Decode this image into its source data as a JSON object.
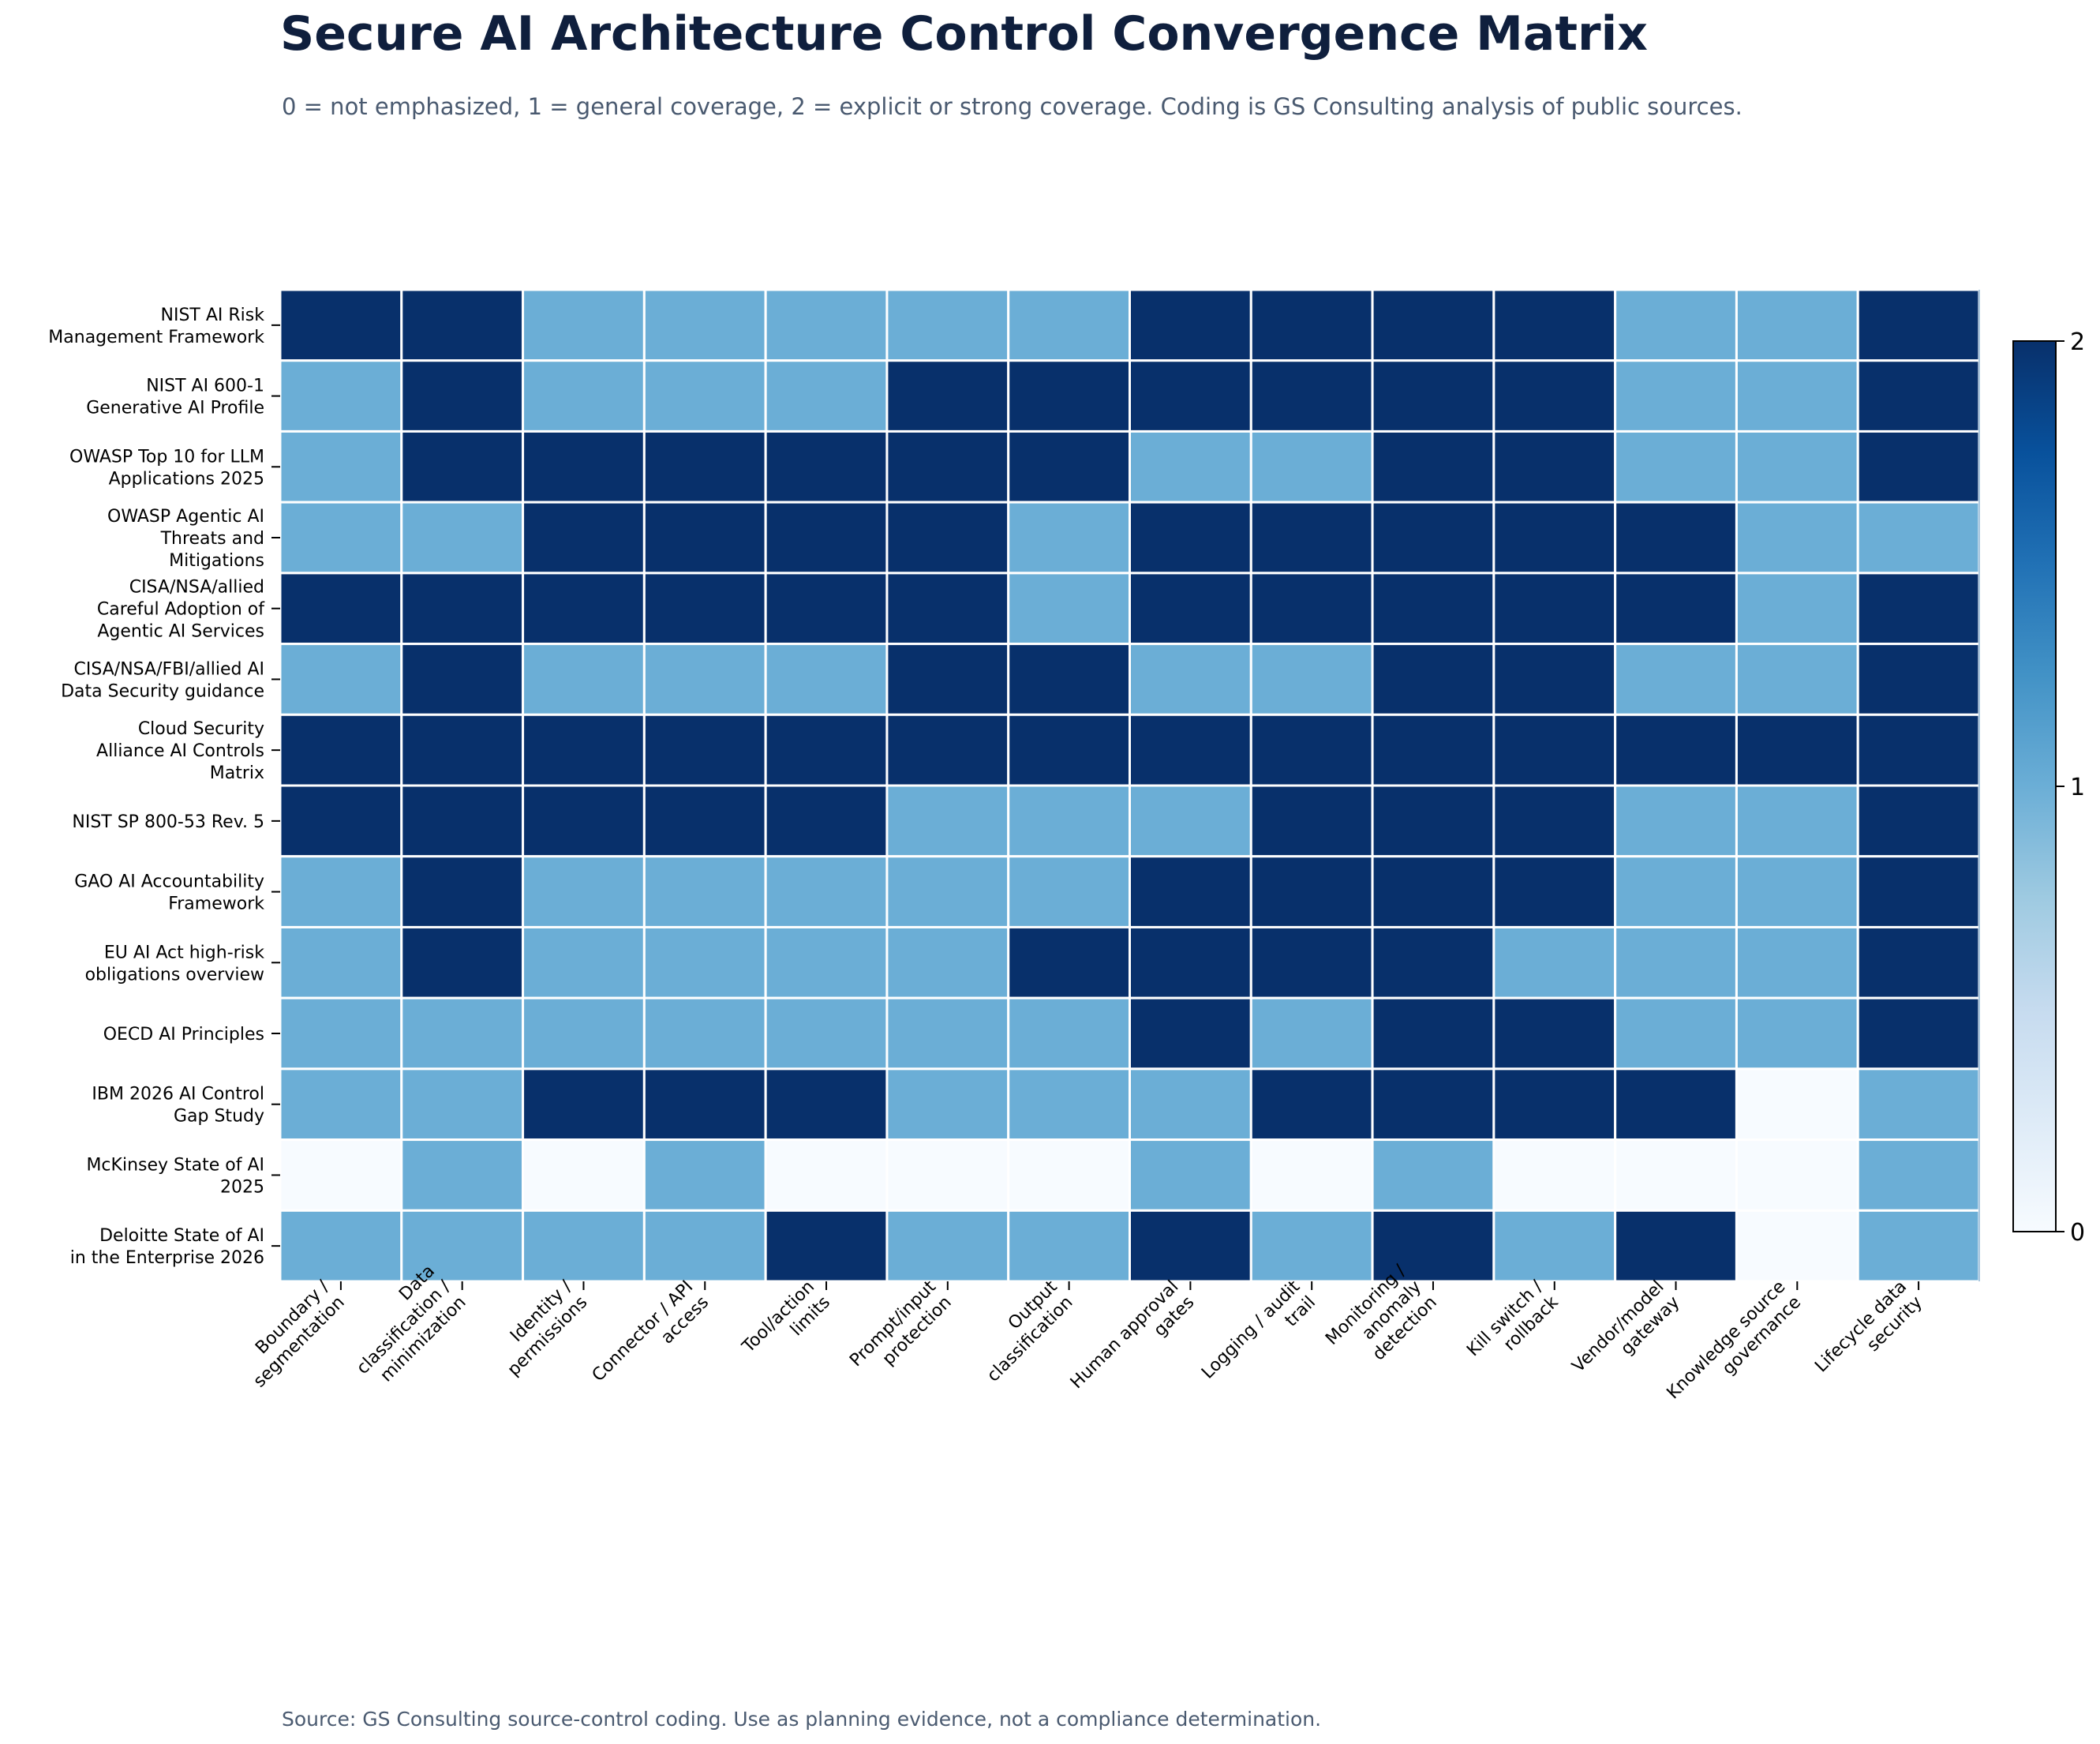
{
  "header": {
    "title": "Secure AI Architecture Control Convergence Matrix",
    "subtitle": "0 = not emphasized, 1 = general coverage, 2 = explicit or strong coverage. Coding is GS Consulting analysis of public sources."
  },
  "footer": {
    "source": "Source: GS Consulting source-control coding. Use as planning evidence, not a compliance determination."
  },
  "chart_data": {
    "type": "heatmap",
    "columns": [
      [
        "Boundary /",
        "segmentation"
      ],
      [
        "Data",
        "classification /",
        "minimization"
      ],
      [
        "Identity /",
        "permissions"
      ],
      [
        "Connector / API",
        "access"
      ],
      [
        "Tool/action",
        "limits"
      ],
      [
        "Prompt/input",
        "protection"
      ],
      [
        "Output",
        "classification"
      ],
      [
        "Human approval",
        "gates"
      ],
      [
        "Logging / audit",
        "trail"
      ],
      [
        "Monitoring /",
        "anomaly",
        "detection"
      ],
      [
        "Kill switch /",
        "rollback"
      ],
      [
        "Vendor/model",
        "gateway"
      ],
      [
        "Knowledge source",
        "governance"
      ],
      [
        "Lifecycle data",
        "security"
      ]
    ],
    "rows": [
      [
        "NIST AI Risk",
        "Management Framework"
      ],
      [
        "NIST AI 600-1",
        "Generative AI Profile"
      ],
      [
        "OWASP Top 10 for LLM",
        "Applications 2025"
      ],
      [
        "OWASP Agentic AI",
        "Threats and",
        "Mitigations"
      ],
      [
        "CISA/NSA/allied",
        "Careful Adoption of",
        "Agentic AI Services"
      ],
      [
        "CISA/NSA/FBI/allied AI",
        "Data Security guidance"
      ],
      [
        "Cloud Security",
        "Alliance AI Controls",
        "Matrix"
      ],
      [
        "NIST SP 800-53 Rev. 5"
      ],
      [
        "GAO AI Accountability",
        "Framework"
      ],
      [
        "EU AI Act high-risk",
        "obligations overview"
      ],
      [
        "OECD AI Principles"
      ],
      [
        "IBM 2026 AI Control",
        "Gap Study"
      ],
      [
        "McKinsey State of AI",
        "2025"
      ],
      [
        "Deloitte State of AI",
        "in the Enterprise 2026"
      ]
    ],
    "values": [
      [
        2,
        2,
        1,
        1,
        1,
        1,
        1,
        2,
        2,
        2,
        2,
        1,
        1,
        2
      ],
      [
        1,
        2,
        1,
        1,
        1,
        2,
        2,
        2,
        2,
        2,
        2,
        1,
        1,
        2
      ],
      [
        1,
        2,
        2,
        2,
        2,
        2,
        2,
        1,
        1,
        2,
        2,
        1,
        1,
        2
      ],
      [
        1,
        1,
        2,
        2,
        2,
        2,
        1,
        2,
        2,
        2,
        2,
        2,
        1,
        1
      ],
      [
        2,
        2,
        2,
        2,
        2,
        2,
        1,
        2,
        2,
        2,
        2,
        2,
        1,
        2
      ],
      [
        1,
        2,
        1,
        1,
        1,
        2,
        2,
        1,
        1,
        2,
        2,
        1,
        1,
        2
      ],
      [
        2,
        2,
        2,
        2,
        2,
        2,
        2,
        2,
        2,
        2,
        2,
        2,
        2,
        2
      ],
      [
        2,
        2,
        2,
        2,
        2,
        1,
        1,
        1,
        2,
        2,
        2,
        1,
        1,
        2
      ],
      [
        1,
        2,
        1,
        1,
        1,
        1,
        1,
        2,
        2,
        2,
        2,
        1,
        1,
        2
      ],
      [
        1,
        2,
        1,
        1,
        1,
        1,
        2,
        2,
        2,
        2,
        1,
        1,
        1,
        2
      ],
      [
        1,
        1,
        1,
        1,
        1,
        1,
        1,
        2,
        1,
        2,
        2,
        1,
        1,
        2
      ],
      [
        1,
        1,
        2,
        2,
        2,
        1,
        1,
        1,
        2,
        2,
        2,
        2,
        0,
        1
      ],
      [
        0,
        1,
        0,
        1,
        0,
        0,
        0,
        1,
        0,
        1,
        0,
        0,
        0,
        1
      ],
      [
        1,
        1,
        1,
        1,
        2,
        1,
        1,
        2,
        1,
        2,
        1,
        2,
        0,
        1
      ]
    ],
    "scale": {
      "min": 0,
      "max": 2,
      "colormap": "Blues"
    },
    "colorbar_ticks": [
      "0",
      "1",
      "2"
    ],
    "colors": {
      "zero": "#f7fbff",
      "one": "#6baed6",
      "two": "#08306b",
      "grid": "#ffffff"
    }
  }
}
